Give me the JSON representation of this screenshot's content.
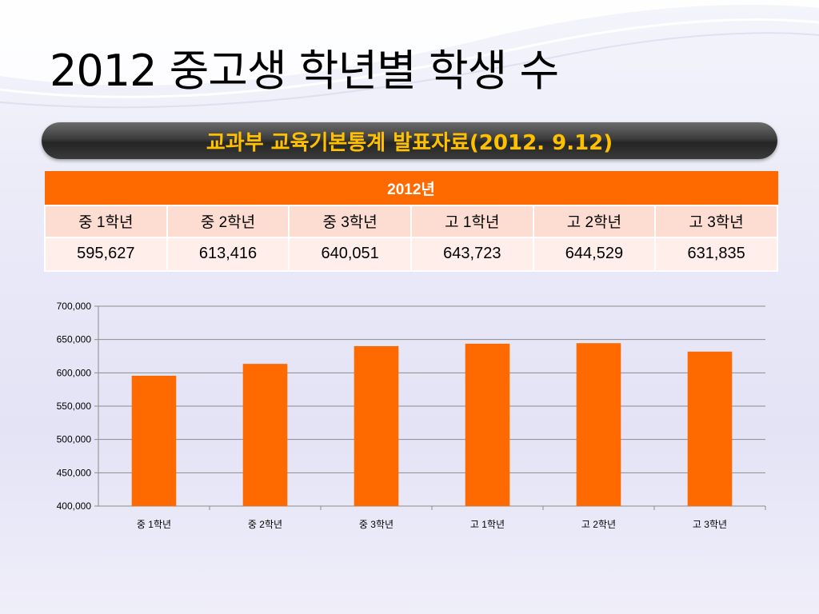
{
  "title": "2012 중고생 학년별 학생 수",
  "banner": "교과부 교육기본통계 발표자료(2012. 9.12)",
  "table": {
    "year_header": "2012년",
    "grades": [
      "중 1학년",
      "중 2학년",
      "중 3학년",
      "고 1학년",
      "고 2학년",
      "고 3학년"
    ],
    "values": [
      "595,627",
      "613,416",
      "640,051",
      "643,723",
      "644,529",
      "631,835"
    ]
  },
  "colors": {
    "accent": "#ff6a00",
    "banner_text": "#ffc000"
  },
  "chart_data": {
    "type": "bar",
    "categories": [
      "중 1학년",
      "중 2학년",
      "중 3학년",
      "고 1학년",
      "고 2학년",
      "고 3학년"
    ],
    "values": [
      595627,
      613416,
      640051,
      643723,
      644529,
      631835
    ],
    "ylim": [
      400000,
      700000
    ],
    "yticks": [
      400000,
      450000,
      500000,
      550000,
      600000,
      650000,
      700000
    ],
    "ytick_labels": [
      "400,000",
      "450,000",
      "500,000",
      "550,000",
      "600,000",
      "650,000",
      "700,000"
    ],
    "grid": true,
    "legend": "none",
    "bar_color": "#ff6a00"
  }
}
